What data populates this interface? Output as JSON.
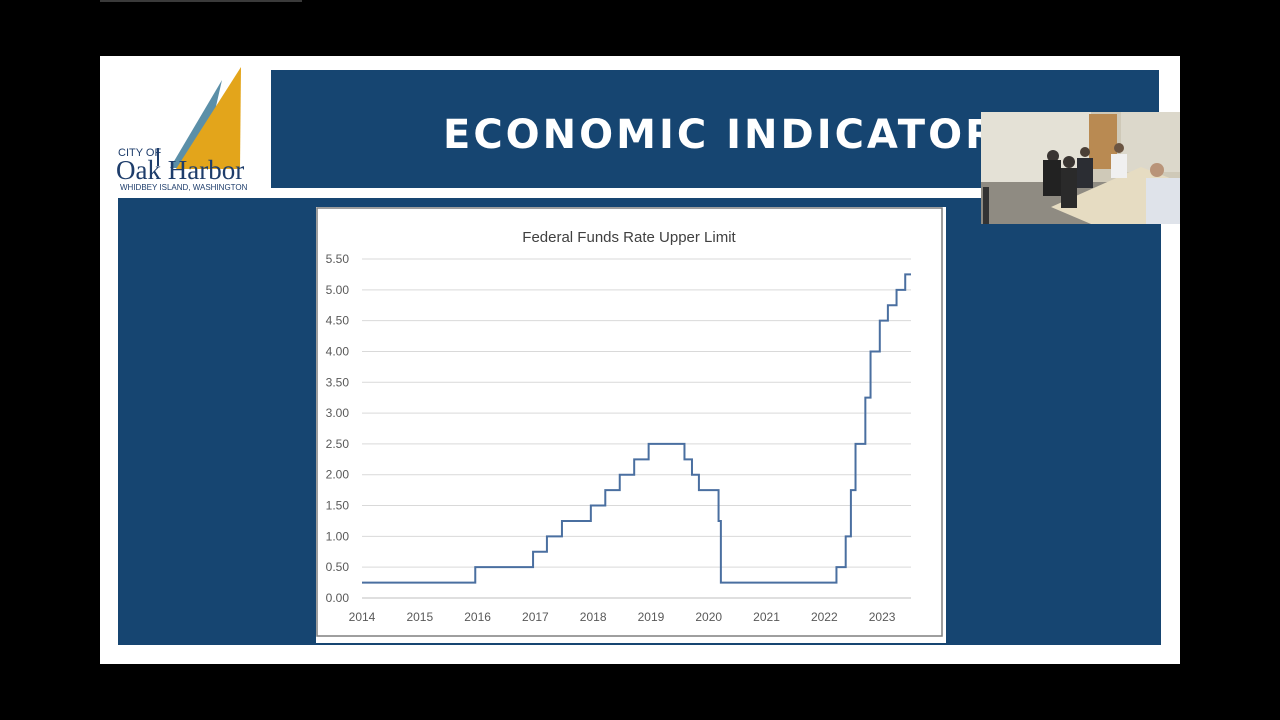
{
  "logo": {
    "city": "CITY OF",
    "name": "Oak Harbor",
    "subtitle": "WHIDBEY ISLAND, WASHINGTON",
    "colors": {
      "sail_blue": "#5b8fa8",
      "sail_gold": "#e3a51b",
      "text": "#1e3d6b"
    }
  },
  "header": {
    "title": "ECONOMIC INDICATORS"
  },
  "colors": {
    "panel": "#164571",
    "line": "#4a6fa0",
    "grid": "#d9d9d9"
  },
  "chart_data": {
    "type": "line",
    "title": "Federal Funds Rate Upper Limit",
    "xlabel": "",
    "ylabel": "",
    "x_ticks": [
      "2014",
      "2015",
      "2016",
      "2017",
      "2018",
      "2019",
      "2020",
      "2021",
      "2022",
      "2023"
    ],
    "y_ticks": [
      "0.00",
      "0.50",
      "1.00",
      "1.50",
      "2.00",
      "2.50",
      "3.00",
      "3.50",
      "4.00",
      "4.50",
      "5.00",
      "5.50"
    ],
    "xlim": [
      2014,
      2023.5
    ],
    "ylim": [
      0,
      5.5
    ],
    "grid": true,
    "legend": "none",
    "step": true,
    "series": [
      {
        "x": [
          2014.0,
          2015.96,
          2016.96,
          2017.2,
          2017.46,
          2017.96,
          2018.21,
          2018.46,
          2018.71,
          2018.96,
          2019.58,
          2019.71,
          2019.83,
          2020.17,
          2020.21,
          2022.21,
          2022.37,
          2022.46,
          2022.54,
          2022.71,
          2022.8,
          2022.96,
          2023.1,
          2023.25,
          2023.4,
          2023.5
        ],
        "y": [
          0.25,
          0.5,
          0.75,
          1.0,
          1.25,
          1.5,
          1.75,
          2.0,
          2.25,
          2.5,
          2.25,
          2.0,
          1.75,
          1.25,
          0.25,
          0.5,
          1.0,
          1.75,
          2.5,
          3.25,
          4.0,
          4.5,
          4.75,
          5.0,
          5.25,
          5.25
        ]
      }
    ]
  }
}
